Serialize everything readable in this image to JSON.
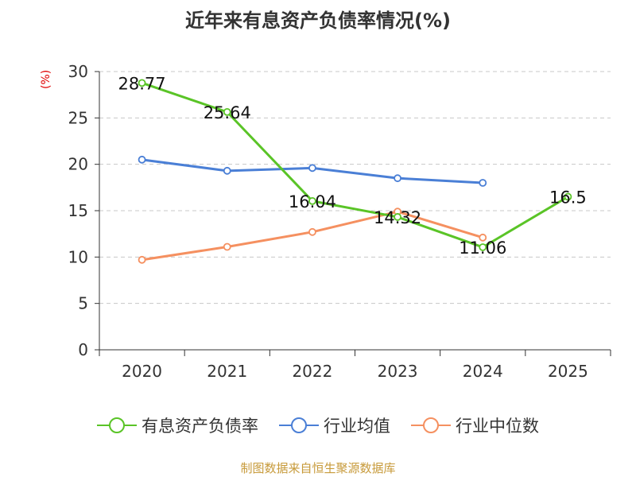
{
  "title": "近年来有息资产负债率情况(%)",
  "y_unit": "(%)",
  "source": "制图数据来自恒生聚源数据库",
  "colors": {
    "primary": "#5ac427",
    "average": "#4a7fd6",
    "median": "#f59060",
    "grid": "#c8c8c8",
    "axis": "#333333"
  },
  "chart_data": {
    "type": "line",
    "categories": [
      "2020",
      "2021",
      "2022",
      "2023",
      "2024",
      "2025"
    ],
    "ylim": [
      0,
      30
    ],
    "yticks": [
      "0",
      "5",
      "10",
      "15",
      "20",
      "25",
      "30"
    ],
    "grid": true,
    "legend_position": "bottom",
    "series": [
      {
        "name": "有息资产负债率",
        "color": "#5ac427",
        "values": [
          28.77,
          25.64,
          16.04,
          14.32,
          11.06,
          16.5
        ],
        "labels": [
          "28.77",
          "25.64",
          "16.04",
          "14.32",
          "11.06",
          "16.5"
        ]
      },
      {
        "name": "行业均值",
        "color": "#4a7fd6",
        "values": [
          20.5,
          19.3,
          19.6,
          18.5,
          18.0,
          null
        ]
      },
      {
        "name": "行业中位数",
        "color": "#f59060",
        "values": [
          9.7,
          11.1,
          12.7,
          14.9,
          12.1,
          null
        ]
      }
    ]
  }
}
